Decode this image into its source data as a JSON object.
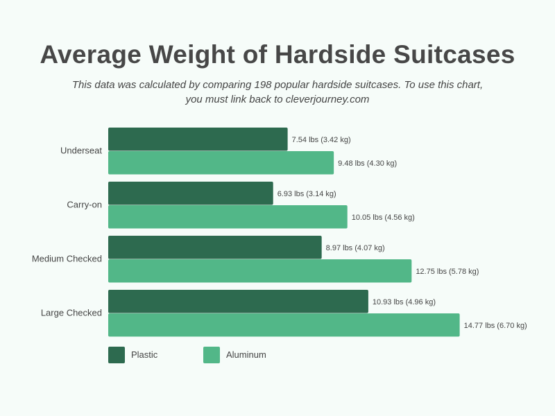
{
  "title": "Average Weight of Hardside Suitcases",
  "subtitle": "This data was calculated by comparing 198 popular hardside suitcases. To use this chart, you must link back to cleverjourney.com",
  "chart_data": {
    "type": "bar",
    "orientation": "horizontal",
    "title": "Average Weight of Hardside Suitcases",
    "categories": [
      "Underseat",
      "Carry-on",
      "Medium Checked",
      "Large Checked"
    ],
    "series": [
      {
        "name": "Plastic",
        "color": "#2d6a4f",
        "values": [
          7.54,
          6.93,
          8.97,
          10.93
        ],
        "labels": [
          "7.54 lbs (3.42 kg)",
          "6.93 lbs (3.14 kg)",
          "8.97 lbs (4.07 kg)",
          "10.93 lbs (4.96 kg)"
        ]
      },
      {
        "name": "Aluminum",
        "color": "#52b788",
        "values": [
          9.48,
          10.05,
          12.75,
          14.77
        ],
        "labels": [
          "9.48 lbs (4.30 kg)",
          "10.05 lbs (4.56 kg)",
          "12.75 lbs (5.78 kg)",
          "14.77 lbs (6.70 kg)"
        ]
      }
    ],
    "xlabel": "",
    "ylabel": "",
    "grid": false,
    "legend": "bottom-left"
  }
}
